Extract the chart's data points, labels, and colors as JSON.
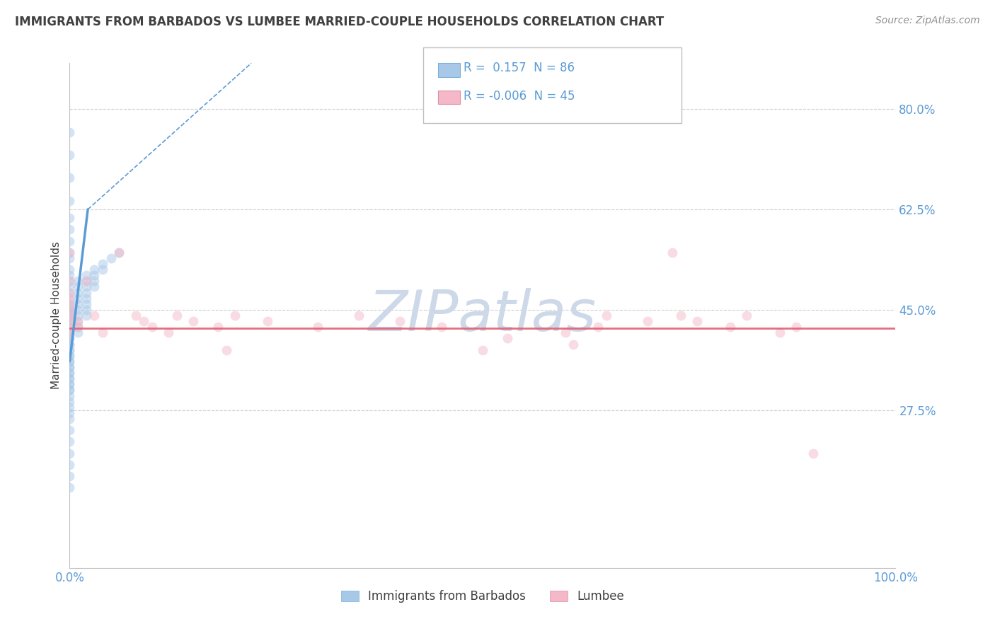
{
  "title": "IMMIGRANTS FROM BARBADOS VS LUMBEE MARRIED-COUPLE HOUSEHOLDS CORRELATION CHART",
  "source": "Source: ZipAtlas.com",
  "ylabel": "Married-couple Households",
  "yticks": [
    0.275,
    0.45,
    0.625,
    0.8
  ],
  "ytick_labels": [
    "27.5%",
    "45.0%",
    "62.5%",
    "80.0%"
  ],
  "xtick_labels": [
    "0.0%",
    "100.0%"
  ],
  "xtick_vals": [
    0.0,
    1.0
  ],
  "legend_items": [
    {
      "label": "Immigrants from Barbados",
      "color": "#a8c8e8"
    },
    {
      "label": "Lumbee",
      "color": "#f4b8c8"
    }
  ],
  "R_blue": " 0.157",
  "N_blue": "86",
  "R_pink": "-0.006",
  "N_pink": "45",
  "blue_scatter_x": [
    0.0,
    0.0,
    0.0,
    0.0,
    0.0,
    0.0,
    0.0,
    0.0,
    0.0,
    0.0,
    0.0,
    0.0,
    0.0,
    0.0,
    0.0,
    0.0,
    0.0,
    0.0,
    0.0,
    0.0,
    0.0,
    0.0,
    0.0,
    0.0,
    0.0,
    0.0,
    0.0,
    0.0,
    0.0,
    0.0,
    0.0,
    0.0,
    0.0,
    0.0,
    0.0,
    0.0,
    0.0,
    0.0,
    0.0,
    0.0,
    0.0,
    0.0,
    0.0,
    0.0,
    0.0,
    0.0,
    0.0,
    0.0,
    0.0,
    0.0,
    0.0,
    0.0,
    0.0,
    0.0,
    0.0,
    0.0,
    0.0,
    0.0,
    0.0,
    0.0,
    0.01,
    0.01,
    0.01,
    0.01,
    0.01,
    0.01,
    0.01,
    0.01,
    0.01,
    0.01,
    0.02,
    0.02,
    0.02,
    0.02,
    0.02,
    0.02,
    0.02,
    0.02,
    0.03,
    0.03,
    0.03,
    0.03,
    0.04,
    0.04,
    0.05,
    0.06
  ],
  "blue_scatter_y": [
    0.76,
    0.72,
    0.68,
    0.64,
    0.61,
    0.59,
    0.57,
    0.55,
    0.54,
    0.52,
    0.51,
    0.5,
    0.49,
    0.48,
    0.47,
    0.46,
    0.45,
    0.44,
    0.43,
    0.42,
    0.41,
    0.4,
    0.39,
    0.38,
    0.37,
    0.36,
    0.35,
    0.34,
    0.33,
    0.32,
    0.31,
    0.3,
    0.29,
    0.28,
    0.27,
    0.26,
    0.24,
    0.22,
    0.2,
    0.18,
    0.16,
    0.14,
    0.45,
    0.44,
    0.43,
    0.42,
    0.41,
    0.4,
    0.39,
    0.38,
    0.37,
    0.36,
    0.35,
    0.34,
    0.33,
    0.32,
    0.31,
    0.46,
    0.45,
    0.44,
    0.5,
    0.49,
    0.48,
    0.47,
    0.46,
    0.45,
    0.44,
    0.43,
    0.42,
    0.41,
    0.51,
    0.5,
    0.49,
    0.48,
    0.47,
    0.46,
    0.45,
    0.44,
    0.52,
    0.51,
    0.5,
    0.49,
    0.53,
    0.52,
    0.54,
    0.55
  ],
  "pink_scatter_x": [
    0.0,
    0.0,
    0.0,
    0.0,
    0.0,
    0.0,
    0.0,
    0.0,
    0.0,
    0.0,
    0.01,
    0.01,
    0.02,
    0.03,
    0.04,
    0.06,
    0.08,
    0.09,
    0.1,
    0.12,
    0.13,
    0.15,
    0.18,
    0.19,
    0.2,
    0.24,
    0.3,
    0.35,
    0.4,
    0.45,
    0.5,
    0.53,
    0.6,
    0.61,
    0.64,
    0.65,
    0.7,
    0.73,
    0.74,
    0.76,
    0.8,
    0.82,
    0.86,
    0.88,
    0.9
  ],
  "pink_scatter_y": [
    0.5,
    0.48,
    0.47,
    0.46,
    0.45,
    0.44,
    0.43,
    0.42,
    0.41,
    0.55,
    0.43,
    0.42,
    0.5,
    0.44,
    0.41,
    0.55,
    0.44,
    0.43,
    0.42,
    0.41,
    0.44,
    0.43,
    0.42,
    0.38,
    0.44,
    0.43,
    0.42,
    0.44,
    0.43,
    0.42,
    0.38,
    0.4,
    0.41,
    0.39,
    0.42,
    0.44,
    0.43,
    0.55,
    0.44,
    0.43,
    0.42,
    0.44,
    0.41,
    0.42,
    0.2
  ],
  "blue_solid_line_x": [
    0.0,
    0.022
  ],
  "blue_solid_line_y": [
    0.36,
    0.625
  ],
  "blue_dashed_line_x": [
    0.022,
    0.22
  ],
  "blue_dashed_line_y": [
    0.625,
    0.88
  ],
  "pink_line_y": 0.418,
  "scatter_alpha": 0.5,
  "scatter_size": 100,
  "blue_color": "#5b9bd5",
  "pink_color": "#f08090",
  "blue_fill": "#a8c8e8",
  "pink_fill": "#f4b8c8",
  "grid_color": "#c8c8c8",
  "axis_color": "#5b9bd5",
  "title_color": "#404040",
  "source_color": "#909090",
  "watermark_color": "#cdd8e8",
  "xmin": 0.0,
  "xmax": 1.0,
  "ymin": 0.0,
  "ymax": 0.88
}
